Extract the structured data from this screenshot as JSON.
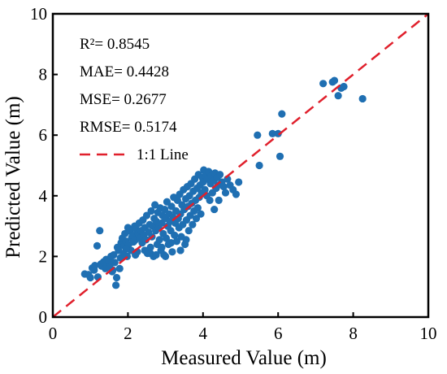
{
  "chart_data": {
    "type": "scatter",
    "title": "",
    "xlabel": "Measured Value (m)",
    "ylabel": "Predicted Value (m)",
    "xlim": [
      0,
      10
    ],
    "ylim": [
      0,
      10
    ],
    "xticks": [
      "0",
      "2",
      "4",
      "6",
      "8",
      "10"
    ],
    "yticks": [
      "0",
      "2",
      "4",
      "6",
      "8",
      "10"
    ],
    "grid": false,
    "legend_placement": "top-left",
    "colors": {
      "points": "#1f6fb2",
      "reference_line": "#e0202c",
      "axes": "#000000"
    },
    "stats": [
      {
        "label": "R²=",
        "value": "0.8545"
      },
      {
        "label": "MAE=",
        "value": "0.4428"
      },
      {
        "label": "MSE=",
        "value": "0.2677"
      },
      {
        "label": "RMSE=",
        "value": "0.5174"
      }
    ],
    "reference_line": {
      "label": "1:1 Line",
      "from": [
        0,
        0
      ],
      "to": [
        10,
        10
      ],
      "style": "dashed"
    },
    "series": [
      {
        "points": [
          [
            0.85,
            1.42
          ],
          [
            0.95,
            1.4
          ],
          [
            1.0,
            1.3
          ],
          [
            1.05,
            1.62
          ],
          [
            1.1,
            1.55
          ],
          [
            1.12,
            1.7
          ],
          [
            1.18,
            2.35
          ],
          [
            1.2,
            1.32
          ],
          [
            1.25,
            2.85
          ],
          [
            1.28,
            1.75
          ],
          [
            1.3,
            1.68
          ],
          [
            1.35,
            1.82
          ],
          [
            1.4,
            1.6
          ],
          [
            1.42,
            1.9
          ],
          [
            1.45,
            1.72
          ],
          [
            1.5,
            1.85
          ],
          [
            1.52,
            1.65
          ],
          [
            1.55,
            2.0
          ],
          [
            1.58,
            1.5
          ],
          [
            1.6,
            1.55
          ],
          [
            1.62,
            2.05
          ],
          [
            1.65,
            1.8
          ],
          [
            1.68,
            1.05
          ],
          [
            1.7,
            1.3
          ],
          [
            1.72,
            2.3
          ],
          [
            1.75,
            2.2
          ],
          [
            1.78,
            1.6
          ],
          [
            1.8,
            1.95
          ],
          [
            1.82,
            2.45
          ],
          [
            1.85,
            2.6
          ],
          [
            1.88,
            2.1
          ],
          [
            1.9,
            2.35
          ],
          [
            1.92,
            2.75
          ],
          [
            1.95,
            2.5
          ],
          [
            1.98,
            2.0
          ],
          [
            2.0,
            2.95
          ],
          [
            2.02,
            2.4
          ],
          [
            2.05,
            2.85
          ],
          [
            2.08,
            2.2
          ],
          [
            2.1,
            2.62
          ],
          [
            2.12,
            2.7
          ],
          [
            2.15,
            2.48
          ],
          [
            2.18,
            3.0
          ],
          [
            2.2,
            2.55
          ],
          [
            2.22,
            2.9
          ],
          [
            2.25,
            2.15
          ],
          [
            2.28,
            2.75
          ],
          [
            2.3,
            3.1
          ],
          [
            2.32,
            2.6
          ],
          [
            2.35,
            2.85
          ],
          [
            2.38,
            2.45
          ],
          [
            2.4,
            3.2
          ],
          [
            2.42,
            2.7
          ],
          [
            2.45,
            2.95
          ],
          [
            2.48,
            2.55
          ],
          [
            2.5,
            3.35
          ],
          [
            2.52,
            2.1
          ],
          [
            2.55,
            2.8
          ],
          [
            2.58,
            3.05
          ],
          [
            2.6,
            2.3
          ],
          [
            2.62,
            3.5
          ],
          [
            2.64,
            2.65
          ],
          [
            2.66,
            3.0
          ],
          [
            2.68,
            2.0
          ],
          [
            2.7,
            3.25
          ],
          [
            2.72,
            3.7
          ],
          [
            2.74,
            2.85
          ],
          [
            2.76,
            3.15
          ],
          [
            2.78,
            2.4
          ],
          [
            2.8,
            3.45
          ],
          [
            2.82,
            2.95
          ],
          [
            2.84,
            2.55
          ],
          [
            2.86,
            3.6
          ],
          [
            2.88,
            2.2
          ],
          [
            2.9,
            3.1
          ],
          [
            2.92,
            3.35
          ],
          [
            2.94,
            2.75
          ],
          [
            2.96,
            2.05
          ],
          [
            2.98,
            3.55
          ],
          [
            3.0,
            3.25
          ],
          [
            3.02,
            2.6
          ],
          [
            3.04,
            3.8
          ],
          [
            3.06,
            3.0
          ],
          [
            3.08,
            2.4
          ],
          [
            3.1,
            3.4
          ],
          [
            3.12,
            3.15
          ],
          [
            3.14,
            2.85
          ],
          [
            3.16,
            3.65
          ],
          [
            3.18,
            2.15
          ],
          [
            3.2,
            3.3
          ],
          [
            3.22,
            3.95
          ],
          [
            3.24,
            2.7
          ],
          [
            3.26,
            3.1
          ],
          [
            3.28,
            3.5
          ],
          [
            3.3,
            2.5
          ],
          [
            3.32,
            3.85
          ],
          [
            3.34,
            3.25
          ],
          [
            3.36,
            2.95
          ],
          [
            3.38,
            4.05
          ],
          [
            3.4,
            3.4
          ],
          [
            3.42,
            2.65
          ],
          [
            3.44,
            3.7
          ],
          [
            3.46,
            3.05
          ],
          [
            3.48,
            4.2
          ],
          [
            3.5,
            3.55
          ],
          [
            3.52,
            2.4
          ],
          [
            3.54,
            3.9
          ],
          [
            3.56,
            3.2
          ],
          [
            3.58,
            4.3
          ],
          [
            3.6,
            3.65
          ],
          [
            3.62,
            2.85
          ],
          [
            3.64,
            4.0
          ],
          [
            3.66,
            3.35
          ],
          [
            3.68,
            4.4
          ],
          [
            3.7,
            3.75
          ],
          [
            3.72,
            3.05
          ],
          [
            3.74,
            4.15
          ],
          [
            3.76,
            3.5
          ],
          [
            3.78,
            4.55
          ],
          [
            3.8,
            3.85
          ],
          [
            3.82,
            3.25
          ],
          [
            3.84,
            4.25
          ],
          [
            3.86,
            3.6
          ],
          [
            3.88,
            4.7
          ],
          [
            3.9,
            3.95
          ],
          [
            3.92,
            4.35
          ],
          [
            3.94,
            3.4
          ],
          [
            3.96,
            4.1
          ],
          [
            3.98,
            4.6
          ],
          [
            4.0,
            4.45
          ],
          [
            4.02,
            4.85
          ],
          [
            4.05,
            4.2
          ],
          [
            4.08,
            4.75
          ],
          [
            4.1,
            4.0
          ],
          [
            4.12,
            4.55
          ],
          [
            4.15,
            4.8
          ],
          [
            4.18,
            3.85
          ],
          [
            4.2,
            4.4
          ],
          [
            4.22,
            4.65
          ],
          [
            4.25,
            4.1
          ],
          [
            4.28,
            4.5
          ],
          [
            4.3,
            3.55
          ],
          [
            4.32,
            4.75
          ],
          [
            4.35,
            4.25
          ],
          [
            4.38,
            4.6
          ],
          [
            4.4,
            4.35
          ],
          [
            4.42,
            3.85
          ],
          [
            4.45,
            4.7
          ],
          [
            4.5,
            4.45
          ],
          [
            4.55,
            4.3
          ],
          [
            4.6,
            4.1
          ],
          [
            4.65,
            4.55
          ],
          [
            4.72,
            4.35
          ],
          [
            4.8,
            4.2
          ],
          [
            4.88,
            4.05
          ],
          [
            4.95,
            4.45
          ],
          [
            2.6,
            2.1
          ],
          [
            2.75,
            2.05
          ],
          [
            2.9,
            2.3
          ],
          [
            3.4,
            2.2
          ],
          [
            3.55,
            2.55
          ],
          [
            3.0,
            2.0
          ],
          [
            2.45,
            2.2
          ],
          [
            3.15,
            2.45
          ],
          [
            2.2,
            2.05
          ],
          [
            1.95,
            2.25
          ],
          [
            5.45,
            6.0
          ],
          [
            5.5,
            5.0
          ],
          [
            5.85,
            6.05
          ],
          [
            6.0,
            6.05
          ],
          [
            6.05,
            5.3
          ],
          [
            6.1,
            6.7
          ],
          [
            7.2,
            7.7
          ],
          [
            7.45,
            7.75
          ],
          [
            7.5,
            7.8
          ],
          [
            7.6,
            7.3
          ],
          [
            7.68,
            7.55
          ],
          [
            7.75,
            7.6
          ],
          [
            8.25,
            7.2
          ]
        ]
      }
    ]
  }
}
